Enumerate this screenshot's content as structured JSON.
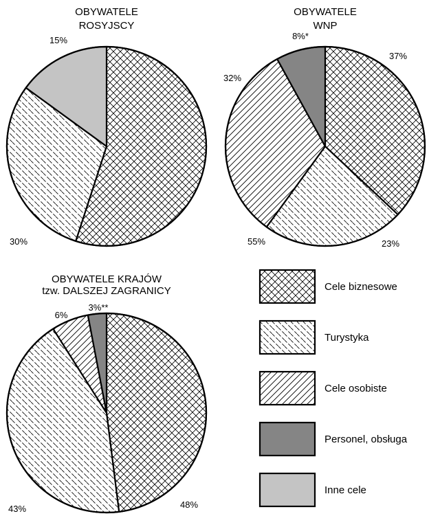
{
  "chart_data": [
    {
      "type": "pie",
      "title": [
        "OBYWATELE",
        "ROSYJSCY"
      ],
      "slices": [
        {
          "category": "Cele biznesowe",
          "value": 55,
          "label": "55%"
        },
        {
          "category": "Turystyka",
          "value": 30,
          "label": "30%"
        },
        {
          "category": "Inne cele",
          "value": 15,
          "label": "15%"
        }
      ]
    },
    {
      "type": "pie",
      "title": [
        "OBYWATELE",
        "WNP"
      ],
      "slices": [
        {
          "category": "Cele biznesowe",
          "value": 37,
          "label": "37%"
        },
        {
          "category": "Turystyka",
          "value": 23,
          "label": "23%"
        },
        {
          "category": "Cele osobiste",
          "value": 32,
          "label": "32%"
        },
        {
          "category": "Personel, obsługa",
          "value": 8,
          "label": "8%*"
        }
      ]
    },
    {
      "type": "pie",
      "title": [
        "OBYWATELE KRAJÓW",
        "tzw. DALSZEJ ZAGRANICY"
      ],
      "slices": [
        {
          "category": "Cele biznesowe",
          "value": 48,
          "label": "48%"
        },
        {
          "category": "Turystyka",
          "value": 43,
          "label": "43%"
        },
        {
          "category": "Cele osobiste",
          "value": 6,
          "label": "6%"
        },
        {
          "category": "Personel, obsługa",
          "value": 3,
          "label": "3%**"
        }
      ]
    }
  ],
  "legend": {
    "placement": "bottom-right",
    "items": [
      {
        "key": "Cele biznesowe",
        "label": "Cele biznesowe",
        "pattern": "crosshatch"
      },
      {
        "key": "Turystyka",
        "label": "Turystyka",
        "pattern": "dashed-diagonal-back"
      },
      {
        "key": "Cele osobiste",
        "label": "Cele osobiste",
        "pattern": "diagonal-forward"
      },
      {
        "key": "Personel, obsługa",
        "label": "Personel, obsługa",
        "pattern": "dark-gray"
      },
      {
        "key": "Inne cele",
        "label": "Inne cele",
        "pattern": "light-gray"
      }
    ]
  },
  "colors": {
    "dark_gray": "#858585",
    "light_gray": "#c4c4c4",
    "stroke": "#000000"
  }
}
